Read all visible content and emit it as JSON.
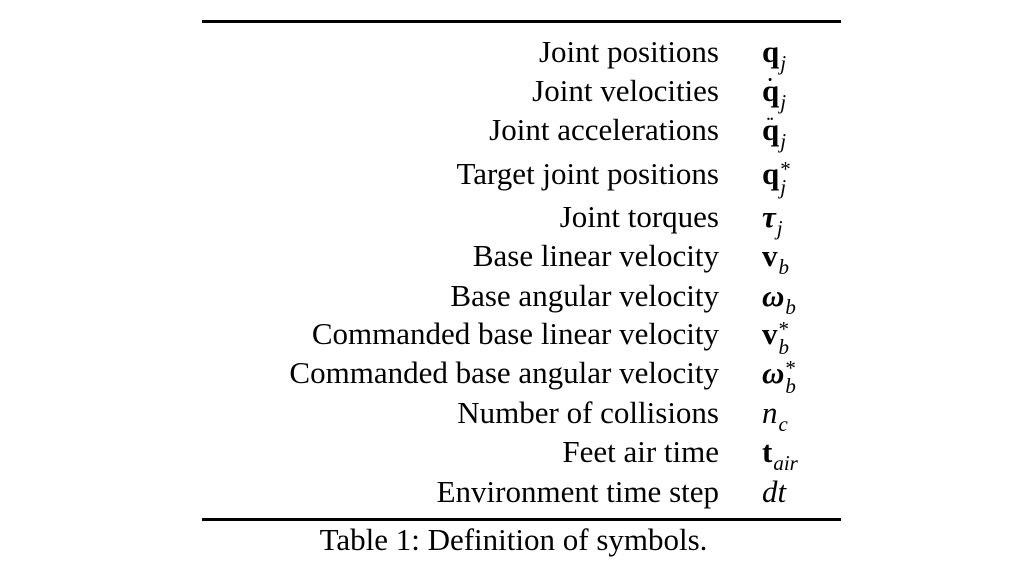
{
  "table": {
    "rows": [
      {
        "description": "Joint positions",
        "symbol": "q",
        "sub": "j",
        "sup": "",
        "dots": ""
      },
      {
        "description": "Joint velocities",
        "symbol": "q",
        "sub": "j",
        "sup": "",
        "dots": "˙"
      },
      {
        "description": "Joint accelerations",
        "symbol": "q",
        "sub": "j",
        "sup": "",
        "dots": "¨"
      },
      {
        "description": "Target joint positions",
        "symbol": "q",
        "sub": "j",
        "sup": "*",
        "dots": ""
      },
      {
        "description": "Joint torques",
        "symbol": "τ",
        "sub": "j",
        "sup": "",
        "dots": ""
      },
      {
        "description": "Base linear velocity",
        "symbol": "v",
        "sub": "b",
        "sup": "",
        "dots": ""
      },
      {
        "description": "Base angular velocity",
        "symbol": "ω",
        "sub": "b",
        "sup": "",
        "dots": ""
      },
      {
        "description": "Commanded base linear velocity",
        "symbol": "v",
        "sub": "b",
        "sup": "*",
        "dots": ""
      },
      {
        "description": "Commanded base angular velocity",
        "symbol": "ω",
        "sub": "b",
        "sup": "*",
        "dots": ""
      },
      {
        "description": "Number of collisions",
        "symbol": "n",
        "sub": "c",
        "sup": "",
        "dots": ""
      },
      {
        "description": "Feet air time",
        "symbol": "t",
        "sub": "air",
        "sup": "",
        "dots": ""
      },
      {
        "description": "Environment time step",
        "symbol": "dt",
        "sub": "",
        "sup": "",
        "dots": ""
      }
    ]
  },
  "caption": "Table 1: Definition of symbols."
}
